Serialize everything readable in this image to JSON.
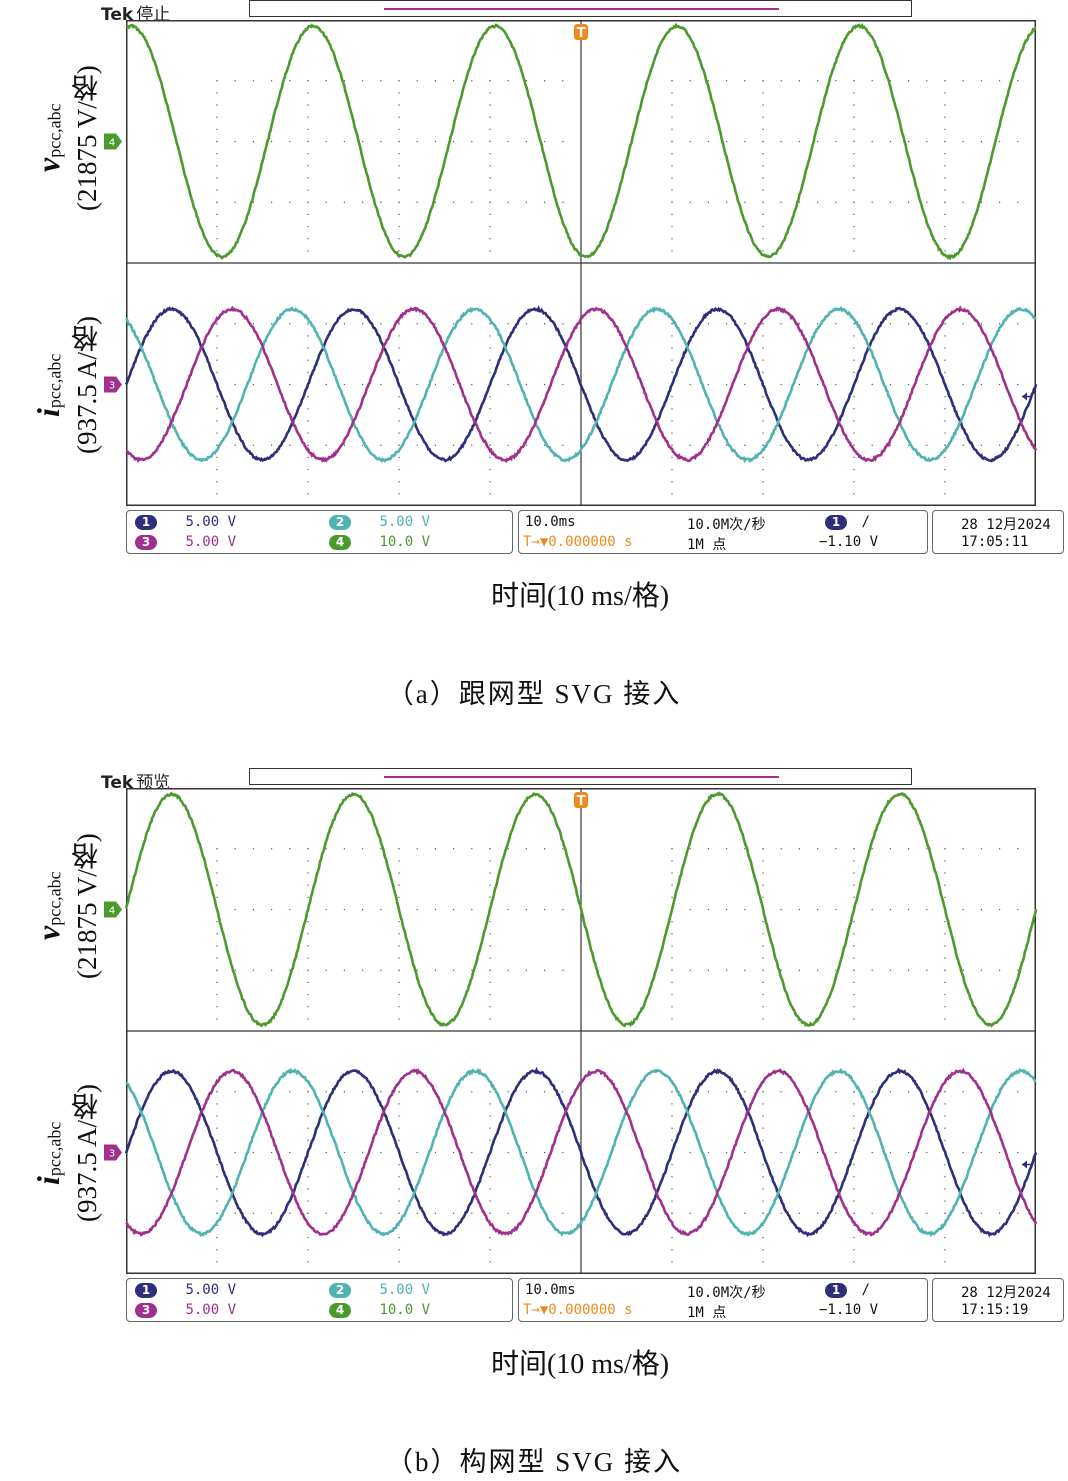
{
  "colors": {
    "ch1": "#2e2e7a",
    "ch2": "#4fb3b0",
    "ch3": "#a0308e",
    "ch4": "#4a9a2e",
    "trigger": "#f08a1c"
  },
  "icons": {
    "trigger_marker": "trigger-T-icon",
    "ground_marker": "channel-ground-marker-icon",
    "slope": "rising-edge-icon",
    "trigger_level_arrow": "left-arrow-icon"
  },
  "panels": [
    {
      "brand": "Tek",
      "status": "停止",
      "ylabel_top": {
        "symbol": "v",
        "sub": "pcc,abc",
        "unit": "(21875 V/格)"
      },
      "ylabel_bottom": {
        "symbol": "i",
        "sub": "pcc,abc",
        "unit": "(937.5 A/格)"
      },
      "ground_top": "4",
      "ground_bottom": "3",
      "trigger_mark": "T",
      "ch1": {
        "badge": "1",
        "scale": "5.00 V"
      },
      "ch2": {
        "badge": "2",
        "scale": "5.00 V"
      },
      "ch3": {
        "badge": "3",
        "scale": "5.00 V"
      },
      "ch4": {
        "badge": "4",
        "scale": "10.0 V"
      },
      "timebase": "10.0ms",
      "trig_pos": "T→▼0.000000 s",
      "sample_rate": "10.0M次/秒",
      "record_len": "1M 点",
      "trig_ch": "1",
      "trig_slope": "/",
      "trig_level": "−1.10 V",
      "date": "28 12月2024",
      "time": "17:05:11",
      "xlabel": "时间(10 ms/格)",
      "caption": "（a）跟网型 SVG 接入"
    },
    {
      "brand": "Tek",
      "status": "预览",
      "ylabel_top": {
        "symbol": "v",
        "sub": "pcc,abc",
        "unit": "(21875 V/格)"
      },
      "ylabel_bottom": {
        "symbol": "i",
        "sub": "pcc,abc",
        "unit": "(937.5 A/格)"
      },
      "ground_top": "4",
      "ground_bottom": "3",
      "trigger_mark": "T",
      "ch1": {
        "badge": "1",
        "scale": "5.00 V"
      },
      "ch2": {
        "badge": "2",
        "scale": "5.00 V"
      },
      "ch3": {
        "badge": "3",
        "scale": "5.00 V"
      },
      "ch4": {
        "badge": "4",
        "scale": "10.0 V"
      },
      "timebase": "10.0ms",
      "trig_pos": "T→▼0.000000 s",
      "sample_rate": "10.0M次/秒",
      "record_len": "1M 点",
      "trig_ch": "1",
      "trig_slope": "/",
      "trig_level": "−1.10 V",
      "date": "28 12月2024",
      "time": "17:15:19",
      "xlabel": "时间(10 ms/格)",
      "caption": "（b）构网型 SVG 接入"
    }
  ],
  "chart_data": [
    {
      "type": "line",
      "x_unit": "ms",
      "x_range_div": [
        -5,
        5
      ],
      "time_per_div_ms": 10,
      "voltage_per_div_V": 21875,
      "current_per_div_A": 937.5,
      "grid": true,
      "series": [
        {
          "channel": 4,
          "group": "voltage",
          "amplitude_div": 0.95,
          "offset_div": 0,
          "period_ms": 20,
          "phase_deg": 80
        },
        {
          "channel": 1,
          "group": "current",
          "amplitude_div": 0.62,
          "offset_div": 0,
          "period_ms": 20,
          "phase_deg": 0
        },
        {
          "channel": 2,
          "group": "current",
          "amplitude_div": 0.62,
          "offset_div": 0,
          "period_ms": 20,
          "phase_deg": 120
        },
        {
          "channel": 3,
          "group": "current",
          "amplitude_div": 0.62,
          "offset_div": 0,
          "period_ms": 20,
          "phase_deg": -120
        }
      ]
    },
    {
      "type": "line",
      "x_unit": "ms",
      "x_range_div": [
        -5,
        5
      ],
      "time_per_div_ms": 10,
      "voltage_per_div_V": 21875,
      "current_per_div_A": 937.5,
      "grid": true,
      "series": [
        {
          "channel": 4,
          "group": "voltage",
          "amplitude_div": 0.95,
          "offset_div": 0,
          "period_ms": 20,
          "phase_deg": 0
        },
        {
          "channel": 1,
          "group": "current",
          "amplitude_div": 0.67,
          "offset_div": 0,
          "period_ms": 20,
          "phase_deg": 0
        },
        {
          "channel": 2,
          "group": "current",
          "amplitude_div": 0.67,
          "offset_div": 0,
          "period_ms": 20,
          "phase_deg": 120
        },
        {
          "channel": 3,
          "group": "current",
          "amplitude_div": 0.67,
          "offset_div": 0,
          "period_ms": 20,
          "phase_deg": -120
        }
      ]
    }
  ]
}
